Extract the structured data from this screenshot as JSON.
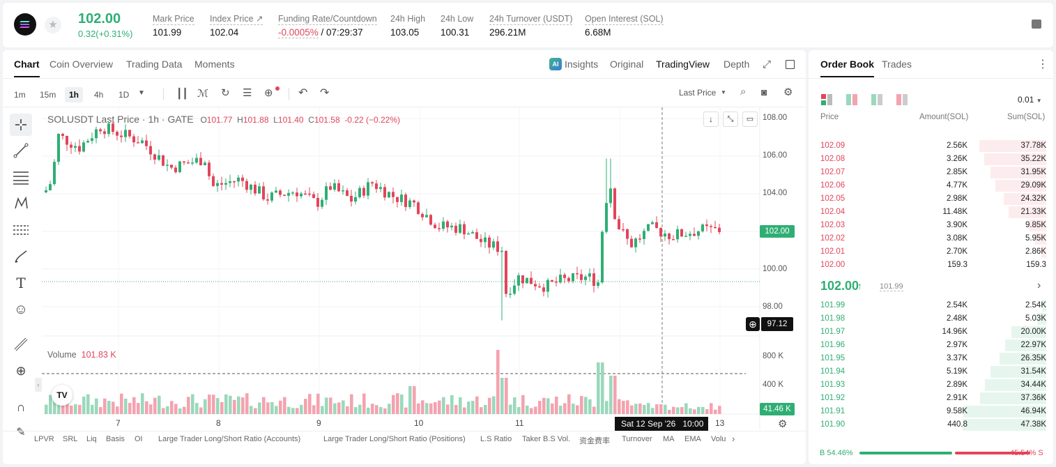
{
  "ticker": {
    "price": "102.00",
    "change": "0.32(+0.31%)",
    "stats": [
      {
        "label": "Mark Price",
        "value": "101.99"
      },
      {
        "label": "Index Price ↗",
        "value": "102.04"
      },
      {
        "label": "Funding Rate/Countdown",
        "value": "-0.0005%",
        "value2": " / 07:29:37"
      },
      {
        "label": "24h High",
        "value": "103.05"
      },
      {
        "label": "24h Low",
        "value": "100.31"
      },
      {
        "label": "24h Turnover (USDT)",
        "value": "296.21M"
      },
      {
        "label": "Open Interest (SOL)",
        "value": "6.68M"
      }
    ]
  },
  "chart_tabs": [
    "Chart",
    "Coin Overview",
    "Trading Data",
    "Moments"
  ],
  "view_tabs": {
    "insights": "Insights",
    "original": "Original",
    "tradingview": "TradingView",
    "depth": "Depth"
  },
  "timeframes": [
    "1m",
    "15m",
    "1h",
    "4h",
    "1D"
  ],
  "price_type": "Last Price",
  "legend": {
    "symbol": "SOLUSDT Last Price · 1h · GATE",
    "o_label": "O",
    "o": "101.77",
    "h_label": "H",
    "h": "101.88",
    "l_label": "L",
    "l": "101.40",
    "c_label": "C",
    "c": "101.58",
    "chg": "-0.22 (−0.22%)"
  },
  "volume_legend": {
    "label": "Volume",
    "value": "101.83 K"
  },
  "y_axis": [
    "108.00",
    "106.00",
    "104.00",
    "102.00",
    "100.00",
    "98.00"
  ],
  "vol_axis": [
    "800 K",
    "400 K"
  ],
  "price_tag": "102.00",
  "cross_price": "97.12",
  "vol_tag": "41.46 K",
  "x_axis": [
    "7",
    "8",
    "9",
    "10",
    "11",
    "13"
  ],
  "cross_time": {
    "date": "Sat 12 Sep '26",
    "time": "10:00"
  },
  "indicators": [
    "LPVR",
    "SRL",
    "Liq",
    "Basis",
    "OI",
    "Large Trader Long/Short Ratio (Accounts)",
    "Large Trader Long/Short Ratio (Positions)",
    "L.S Ratio",
    "Taker B.S Vol.",
    "资金费率",
    "Turnover",
    "MA",
    "EMA",
    "Volu"
  ],
  "orderbook": {
    "tabs": [
      "Order Book",
      "Trades"
    ],
    "precision": "0.01",
    "headers": {
      "price": "Price",
      "amount": "Amount(SOL)",
      "sum": "Sum(SOL)"
    },
    "asks": [
      {
        "price": "102.09",
        "amount": "2.56K",
        "sum": "37.78K",
        "depth": 0.8
      },
      {
        "price": "102.08",
        "amount": "3.26K",
        "sum": "35.22K",
        "depth": 0.74
      },
      {
        "price": "102.07",
        "amount": "2.85K",
        "sum": "31.95K",
        "depth": 0.67
      },
      {
        "price": "102.06",
        "amount": "4.77K",
        "sum": "29.09K",
        "depth": 0.61
      },
      {
        "price": "102.05",
        "amount": "2.98K",
        "sum": "24.32K",
        "depth": 0.51
      },
      {
        "price": "102.04",
        "amount": "11.48K",
        "sum": "21.33K",
        "depth": 0.45
      },
      {
        "price": "102.03",
        "amount": "3.90K",
        "sum": "9.85K",
        "depth": 0.21
      },
      {
        "price": "102.02",
        "amount": "3.08K",
        "sum": "5.95K",
        "depth": 0.13
      },
      {
        "price": "102.01",
        "amount": "2.70K",
        "sum": "2.86K",
        "depth": 0.06
      },
      {
        "price": "102.00",
        "amount": "159.3",
        "sum": "159.3",
        "depth": 0.0
      }
    ],
    "last_price": "102.00",
    "mark_price": "101.99",
    "bids": [
      {
        "price": "101.99",
        "amount": "2.54K",
        "sum": "2.54K",
        "depth": 0.05
      },
      {
        "price": "101.98",
        "amount": "2.48K",
        "sum": "5.03K",
        "depth": 0.11
      },
      {
        "price": "101.97",
        "amount": "14.96K",
        "sum": "20.00K",
        "depth": 0.42
      },
      {
        "price": "101.96",
        "amount": "2.97K",
        "sum": "22.97K",
        "depth": 0.49
      },
      {
        "price": "101.95",
        "amount": "3.37K",
        "sum": "26.35K",
        "depth": 0.56
      },
      {
        "price": "101.94",
        "amount": "5.19K",
        "sum": "31.54K",
        "depth": 0.67
      },
      {
        "price": "101.93",
        "amount": "2.89K",
        "sum": "34.44K",
        "depth": 0.73
      },
      {
        "price": "101.92",
        "amount": "2.91K",
        "sum": "37.36K",
        "depth": 0.79
      },
      {
        "price": "101.91",
        "amount": "9.58K",
        "sum": "46.94K",
        "depth": 0.99
      },
      {
        "price": "101.90",
        "amount": "440.8",
        "sum": "47.38K",
        "depth": 1.0
      }
    ],
    "ratio": {
      "buy_label": "B",
      "buy": "54.46%",
      "sell": "45.54%",
      "sell_label": "S",
      "buy_fraction": 0.5446
    }
  },
  "colors": {
    "up": "#2fae74",
    "down": "#e2455a",
    "up_vol": "#9bd8bc",
    "down_vol": "#f4a3af"
  }
}
